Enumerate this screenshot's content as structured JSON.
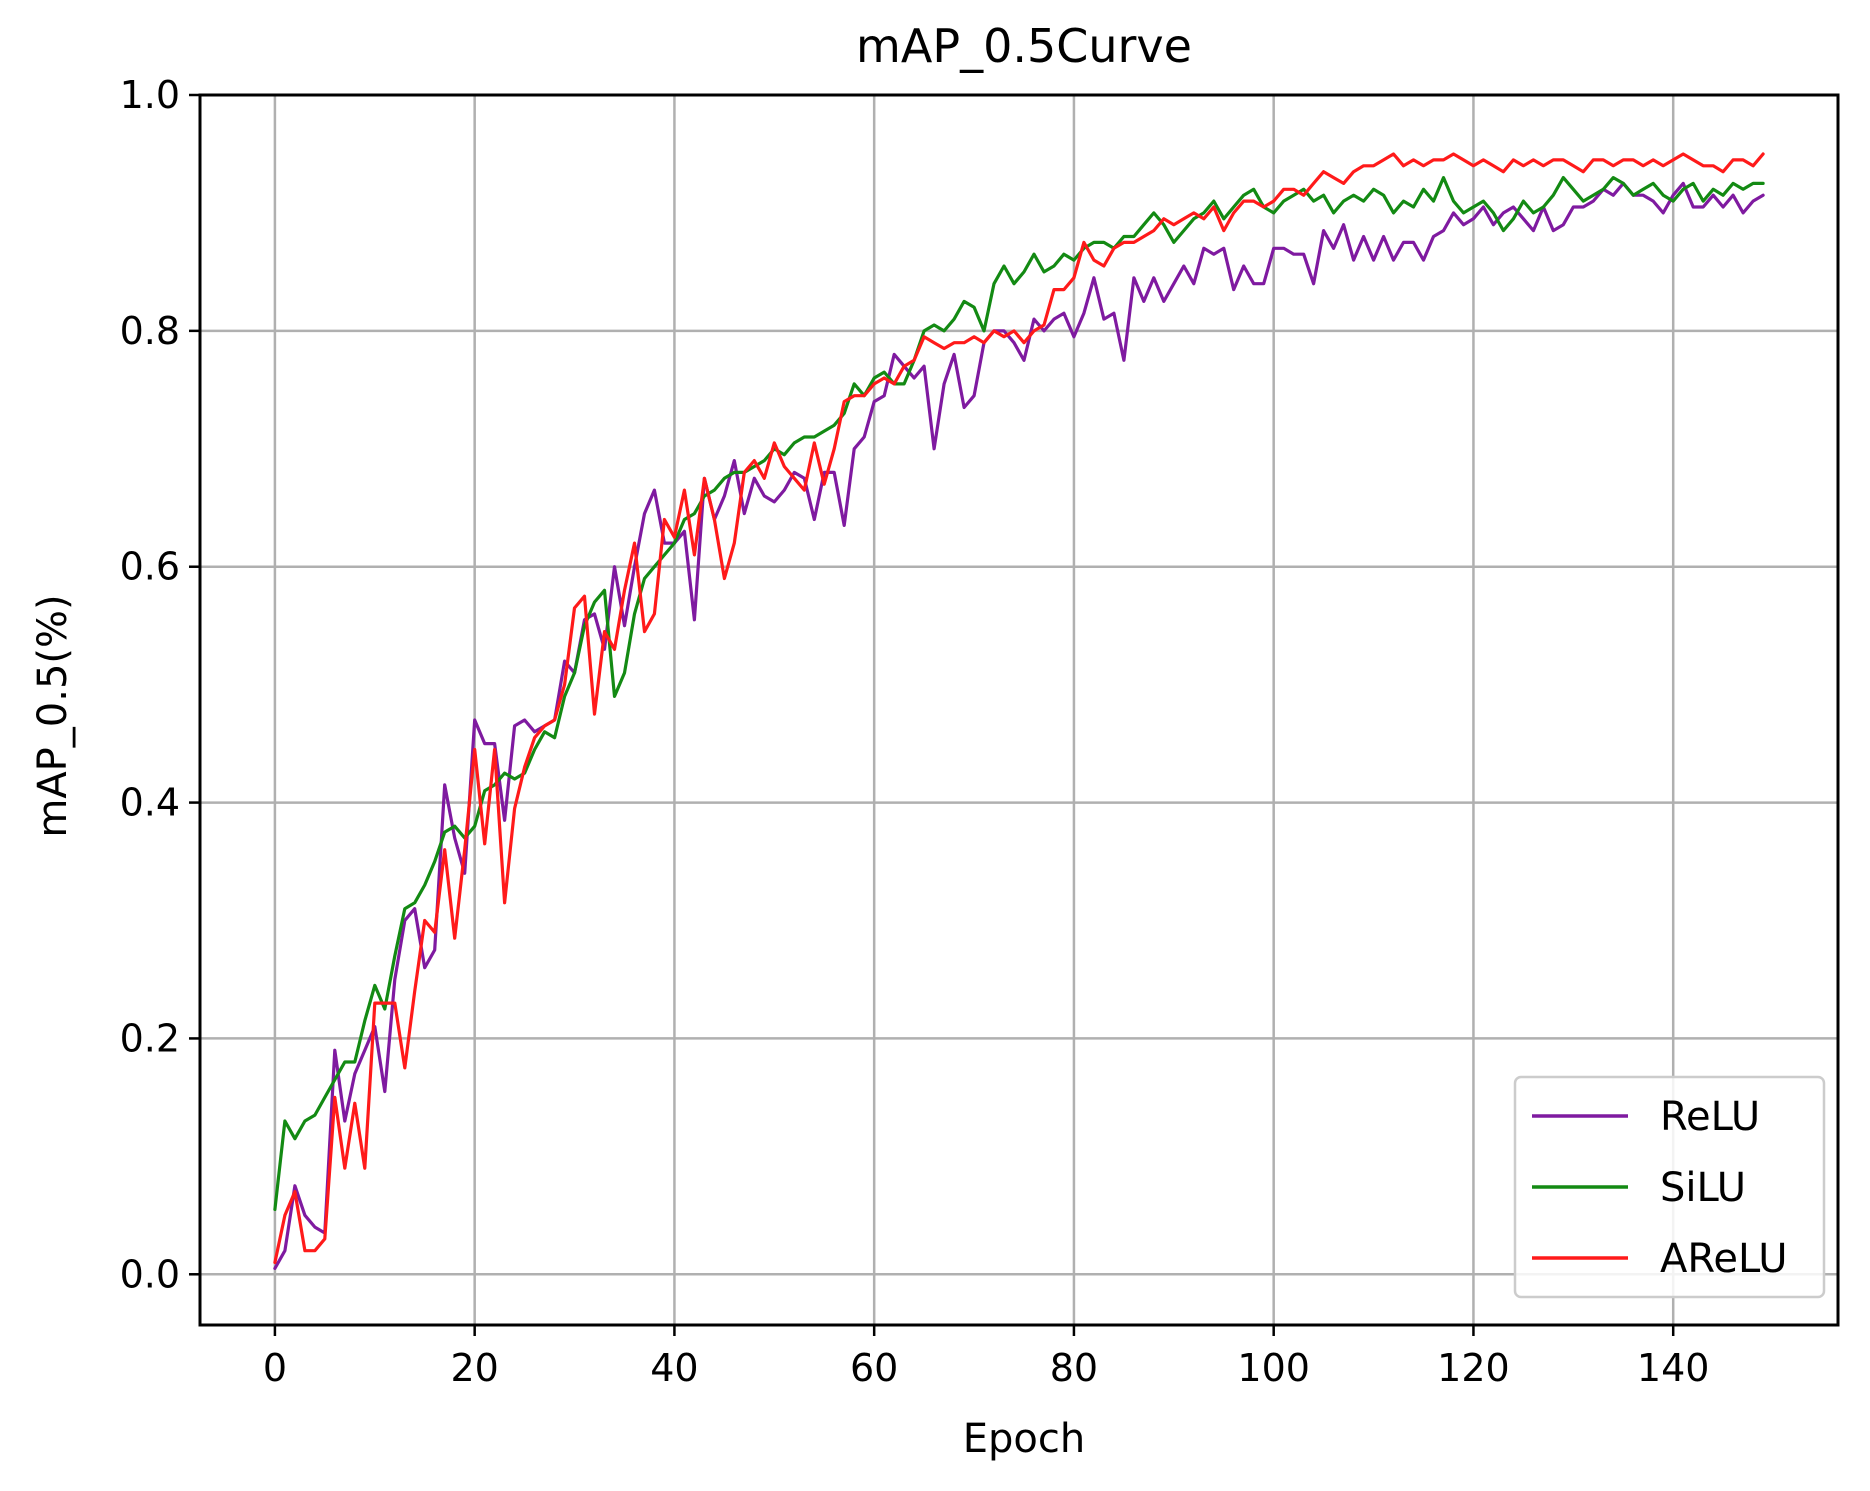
{
  "chart_data": {
    "type": "line",
    "title": "mAP_0.5Curve",
    "xlabel": "Epoch",
    "ylabel": "mAP_0.5(%)",
    "xlim": [
      -7.5,
      156.5
    ],
    "ylim": [
      -0.043,
      1.0
    ],
    "xticks": [
      0,
      20,
      40,
      60,
      80,
      100,
      120,
      140
    ],
    "yticks": [
      0.0,
      0.2,
      0.4,
      0.6,
      0.8,
      1.0
    ],
    "xtick_labels": [
      "0",
      "20",
      "40",
      "60",
      "80",
      "100",
      "120",
      "140"
    ],
    "ytick_labels": [
      "0.0",
      "0.2",
      "0.4",
      "0.6",
      "0.8",
      "1.0"
    ],
    "grid": true,
    "legend_position": "bottom-right",
    "series": [
      {
        "name": "ReLU",
        "color": "#7f1aa0",
        "x": [
          0,
          1,
          2,
          3,
          4,
          5,
          6,
          7,
          8,
          9,
          10,
          11,
          12,
          13,
          14,
          15,
          16,
          17,
          18,
          19,
          20,
          21,
          22,
          23,
          24,
          25,
          26,
          27,
          28,
          29,
          30,
          31,
          32,
          33,
          34,
          35,
          36,
          37,
          38,
          39,
          40,
          41,
          42,
          43,
          44,
          45,
          46,
          47,
          48,
          49,
          50,
          51,
          52,
          53,
          54,
          55,
          56,
          57,
          58,
          59,
          60,
          61,
          62,
          63,
          64,
          65,
          66,
          67,
          68,
          69,
          70,
          71,
          72,
          73,
          74,
          75,
          76,
          77,
          78,
          79,
          80,
          81,
          82,
          83,
          84,
          85,
          86,
          87,
          88,
          89,
          90,
          91,
          92,
          93,
          94,
          95,
          96,
          97,
          98,
          99,
          100,
          101,
          102,
          103,
          104,
          105,
          106,
          107,
          108,
          109,
          110,
          111,
          112,
          113,
          114,
          115,
          116,
          117,
          118,
          119,
          120,
          121,
          122,
          123,
          124,
          125,
          126,
          127,
          128,
          129,
          130,
          131,
          132,
          133,
          134,
          135,
          136,
          137,
          138,
          139,
          140,
          141,
          142,
          143,
          144,
          145,
          146,
          147,
          148,
          149
        ],
        "y": [
          0.005,
          0.02,
          0.075,
          0.05,
          0.04,
          0.035,
          0.19,
          0.13,
          0.17,
          0.19,
          0.21,
          0.155,
          0.25,
          0.3,
          0.31,
          0.26,
          0.275,
          0.415,
          0.37,
          0.34,
          0.47,
          0.45,
          0.45,
          0.385,
          0.465,
          0.47,
          0.46,
          0.465,
          0.47,
          0.52,
          0.51,
          0.555,
          0.56,
          0.53,
          0.6,
          0.55,
          0.6,
          0.645,
          0.665,
          0.62,
          0.62,
          0.63,
          0.555,
          0.675,
          0.64,
          0.66,
          0.69,
          0.645,
          0.675,
          0.66,
          0.655,
          0.665,
          0.68,
          0.675,
          0.64,
          0.68,
          0.68,
          0.635,
          0.7,
          0.71,
          0.74,
          0.745,
          0.78,
          0.77,
          0.76,
          0.77,
          0.7,
          0.755,
          0.78,
          0.735,
          0.745,
          0.79,
          0.8,
          0.8,
          0.79,
          0.775,
          0.81,
          0.8,
          0.81,
          0.815,
          0.795,
          0.815,
          0.845,
          0.81,
          0.815,
          0.775,
          0.845,
          0.825,
          0.845,
          0.825,
          0.84,
          0.855,
          0.84,
          0.87,
          0.865,
          0.87,
          0.835,
          0.855,
          0.84,
          0.84,
          0.87,
          0.87,
          0.865,
          0.865,
          0.84,
          0.885,
          0.87,
          0.89,
          0.86,
          0.88,
          0.86,
          0.88,
          0.86,
          0.875,
          0.875,
          0.86,
          0.88,
          0.885,
          0.9,
          0.89,
          0.895,
          0.905,
          0.89,
          0.9,
          0.905,
          0.895,
          0.885,
          0.905,
          0.885,
          0.89,
          0.905,
          0.905,
          0.91,
          0.92,
          0.915,
          0.925,
          0.915,
          0.915,
          0.91,
          0.9,
          0.915,
          0.925,
          0.905,
          0.905,
          0.915,
          0.905,
          0.915,
          0.9,
          0.91,
          0.915
        ]
      },
      {
        "name": "SiLU",
        "color": "#138a13",
        "x": [
          0,
          1,
          2,
          3,
          4,
          5,
          6,
          7,
          8,
          9,
          10,
          11,
          12,
          13,
          14,
          15,
          16,
          17,
          18,
          19,
          20,
          21,
          22,
          23,
          24,
          25,
          26,
          27,
          28,
          29,
          30,
          31,
          32,
          33,
          34,
          35,
          36,
          37,
          38,
          39,
          40,
          41,
          42,
          43,
          44,
          45,
          46,
          47,
          48,
          49,
          50,
          51,
          52,
          53,
          54,
          55,
          56,
          57,
          58,
          59,
          60,
          61,
          62,
          63,
          64,
          65,
          66,
          67,
          68,
          69,
          70,
          71,
          72,
          73,
          74,
          75,
          76,
          77,
          78,
          79,
          80,
          81,
          82,
          83,
          84,
          85,
          86,
          87,
          88,
          89,
          90,
          91,
          92,
          93,
          94,
          95,
          96,
          97,
          98,
          99,
          100,
          101,
          102,
          103,
          104,
          105,
          106,
          107,
          108,
          109,
          110,
          111,
          112,
          113,
          114,
          115,
          116,
          117,
          118,
          119,
          120,
          121,
          122,
          123,
          124,
          125,
          126,
          127,
          128,
          129,
          130,
          131,
          132,
          133,
          134,
          135,
          136,
          137,
          138,
          139,
          140,
          141,
          142,
          143,
          144,
          145,
          146,
          147,
          148,
          149
        ],
        "y": [
          0.055,
          0.13,
          0.115,
          0.13,
          0.135,
          0.15,
          0.165,
          0.18,
          0.18,
          0.215,
          0.245,
          0.225,
          0.27,
          0.31,
          0.315,
          0.33,
          0.35,
          0.375,
          0.38,
          0.37,
          0.38,
          0.41,
          0.415,
          0.425,
          0.42,
          0.425,
          0.445,
          0.46,
          0.455,
          0.49,
          0.51,
          0.55,
          0.57,
          0.58,
          0.49,
          0.51,
          0.56,
          0.59,
          0.6,
          0.61,
          0.62,
          0.64,
          0.645,
          0.66,
          0.665,
          0.675,
          0.68,
          0.68,
          0.685,
          0.69,
          0.7,
          0.695,
          0.705,
          0.71,
          0.71,
          0.715,
          0.72,
          0.73,
          0.755,
          0.745,
          0.76,
          0.765,
          0.755,
          0.755,
          0.775,
          0.8,
          0.805,
          0.8,
          0.81,
          0.825,
          0.82,
          0.8,
          0.84,
          0.855,
          0.84,
          0.85,
          0.865,
          0.85,
          0.855,
          0.865,
          0.86,
          0.87,
          0.875,
          0.875,
          0.87,
          0.88,
          0.88,
          0.89,
          0.9,
          0.89,
          0.875,
          0.885,
          0.895,
          0.9,
          0.91,
          0.895,
          0.905,
          0.915,
          0.92,
          0.905,
          0.9,
          0.91,
          0.915,
          0.92,
          0.91,
          0.915,
          0.9,
          0.91,
          0.915,
          0.91,
          0.92,
          0.915,
          0.9,
          0.91,
          0.905,
          0.92,
          0.91,
          0.93,
          0.91,
          0.9,
          0.905,
          0.91,
          0.9,
          0.885,
          0.895,
          0.91,
          0.9,
          0.905,
          0.915,
          0.93,
          0.92,
          0.91,
          0.915,
          0.92,
          0.93,
          0.925,
          0.915,
          0.92,
          0.925,
          0.915,
          0.91,
          0.92,
          0.925,
          0.91,
          0.92,
          0.915,
          0.925,
          0.92,
          0.925,
          0.925
        ]
      },
      {
        "name": "AReLU",
        "color": "#ff1a1a",
        "x": [
          0,
          1,
          2,
          3,
          4,
          5,
          6,
          7,
          8,
          9,
          10,
          11,
          12,
          13,
          14,
          15,
          16,
          17,
          18,
          19,
          20,
          21,
          22,
          23,
          24,
          25,
          26,
          27,
          28,
          29,
          30,
          31,
          32,
          33,
          34,
          35,
          36,
          37,
          38,
          39,
          40,
          41,
          42,
          43,
          44,
          45,
          46,
          47,
          48,
          49,
          50,
          51,
          52,
          53,
          54,
          55,
          56,
          57,
          58,
          59,
          60,
          61,
          62,
          63,
          64,
          65,
          66,
          67,
          68,
          69,
          70,
          71,
          72,
          73,
          74,
          75,
          76,
          77,
          78,
          79,
          80,
          81,
          82,
          83,
          84,
          85,
          86,
          87,
          88,
          89,
          90,
          91,
          92,
          93,
          94,
          95,
          96,
          97,
          98,
          99,
          100,
          101,
          102,
          103,
          104,
          105,
          106,
          107,
          108,
          109,
          110,
          111,
          112,
          113,
          114,
          115,
          116,
          117,
          118,
          119,
          120,
          121,
          122,
          123,
          124,
          125,
          126,
          127,
          128,
          129,
          130,
          131,
          132,
          133,
          134,
          135,
          136,
          137,
          138,
          139,
          140,
          141,
          142,
          143,
          144,
          145,
          146,
          147,
          148,
          149
        ],
        "y": [
          0.01,
          0.05,
          0.07,
          0.02,
          0.02,
          0.03,
          0.15,
          0.09,
          0.145,
          0.09,
          0.23,
          0.23,
          0.23,
          0.175,
          0.24,
          0.3,
          0.29,
          0.36,
          0.285,
          0.36,
          0.445,
          0.365,
          0.445,
          0.315,
          0.395,
          0.43,
          0.455,
          0.465,
          0.47,
          0.5,
          0.565,
          0.575,
          0.475,
          0.545,
          0.53,
          0.58,
          0.62,
          0.545,
          0.56,
          0.64,
          0.625,
          0.665,
          0.61,
          0.675,
          0.64,
          0.59,
          0.62,
          0.68,
          0.69,
          0.675,
          0.705,
          0.685,
          0.675,
          0.665,
          0.705,
          0.67,
          0.7,
          0.74,
          0.745,
          0.745,
          0.755,
          0.76,
          0.755,
          0.77,
          0.775,
          0.795,
          0.79,
          0.785,
          0.79,
          0.79,
          0.795,
          0.79,
          0.8,
          0.795,
          0.8,
          0.79,
          0.8,
          0.805,
          0.835,
          0.835,
          0.845,
          0.875,
          0.86,
          0.855,
          0.87,
          0.875,
          0.875,
          0.88,
          0.885,
          0.895,
          0.89,
          0.895,
          0.9,
          0.895,
          0.905,
          0.885,
          0.9,
          0.91,
          0.91,
          0.905,
          0.91,
          0.92,
          0.92,
          0.915,
          0.925,
          0.935,
          0.93,
          0.925,
          0.935,
          0.94,
          0.94,
          0.945,
          0.95,
          0.94,
          0.945,
          0.94,
          0.945,
          0.945,
          0.95,
          0.945,
          0.94,
          0.945,
          0.94,
          0.935,
          0.945,
          0.94,
          0.945,
          0.94,
          0.945,
          0.945,
          0.94,
          0.935,
          0.945,
          0.945,
          0.94,
          0.945,
          0.945,
          0.94,
          0.945,
          0.94,
          0.945,
          0.95,
          0.945,
          0.94,
          0.94,
          0.935,
          0.945,
          0.945,
          0.94,
          0.95
        ]
      }
    ]
  }
}
